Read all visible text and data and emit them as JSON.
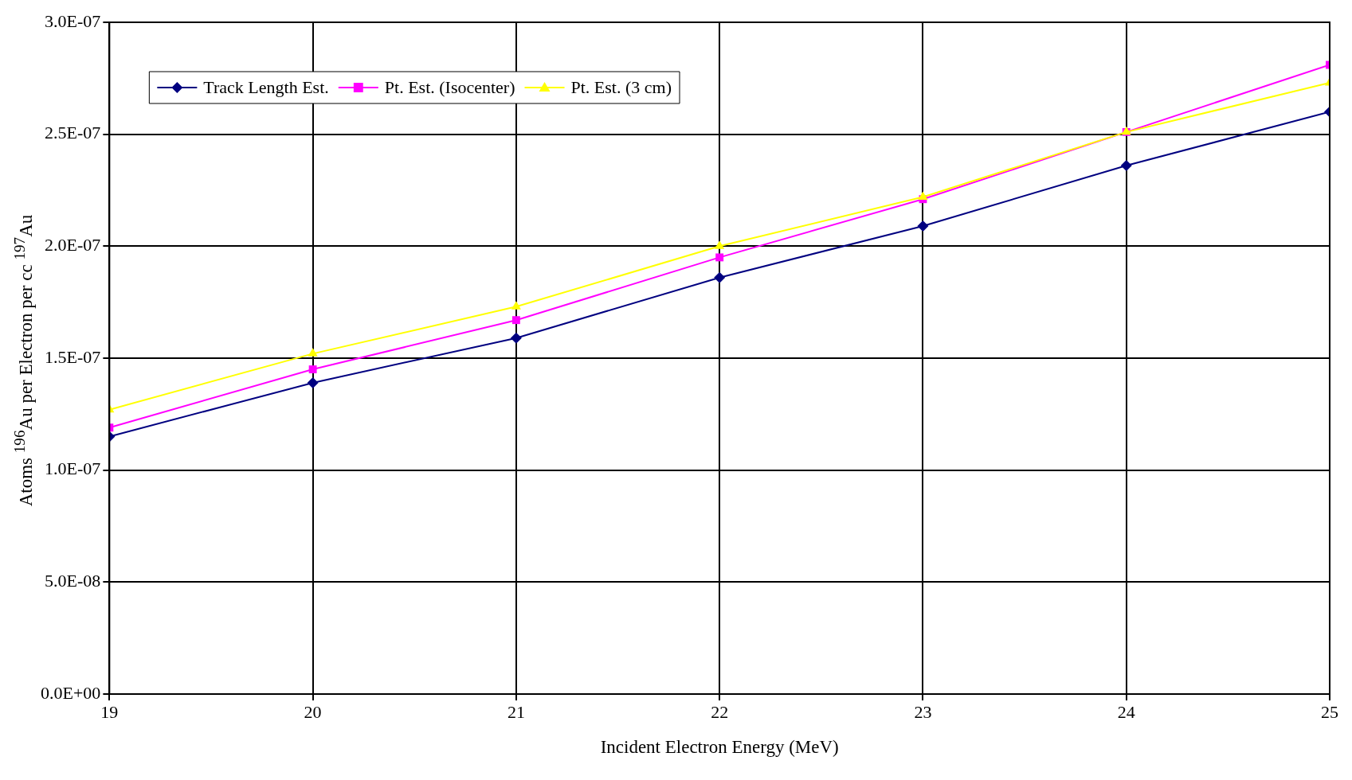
{
  "chart_data": {
    "type": "line",
    "xlabel": "Incident Electron Energy (MeV)",
    "ylabel": "Atoms $^{196}$Au per Electron per cc $^{197}$Au",
    "x": [
      19,
      20,
      21,
      22,
      23,
      24,
      25
    ],
    "xlim": [
      19,
      25
    ],
    "xticks": [
      19,
      20,
      21,
      22,
      23,
      24,
      25
    ],
    "ylim": [
      0,
      3e-07
    ],
    "yticks": [
      {
        "value": 0,
        "label": "0.0E+00"
      },
      {
        "value": 5e-08,
        "label": "5.0E-08"
      },
      {
        "value": 1e-07,
        "label": "1.0E-07"
      },
      {
        "value": 1.5e-07,
        "label": "1.5E-07"
      },
      {
        "value": 2e-07,
        "label": "2.0E-07"
      },
      {
        "value": 2.5e-07,
        "label": "2.5E-07"
      },
      {
        "value": 3e-07,
        "label": "3.0E-07"
      }
    ],
    "grid": true,
    "legend": "top left",
    "line_style": "solid",
    "series": [
      {
        "name": "Track Length Est.",
        "color": "#000080",
        "marker": "diamond",
        "values": [
          1.15e-07,
          1.39e-07,
          1.59e-07,
          1.86e-07,
          2.09e-07,
          2.36e-07,
          2.6e-07
        ]
      },
      {
        "name": "Pt. Est. (Isocenter)",
        "color": "#ff00ff",
        "marker": "square",
        "values": [
          1.19e-07,
          1.45e-07,
          1.67e-07,
          1.95e-07,
          2.21e-07,
          2.51e-07,
          2.81e-07
        ]
      },
      {
        "name": "Pt. Est. (3 cm)",
        "color": "#ffff00",
        "marker": "triangle",
        "values": [
          1.27e-07,
          1.52e-07,
          1.73e-07,
          2e-07,
          2.22e-07,
          2.51e-07,
          2.73e-07
        ]
      }
    ]
  }
}
